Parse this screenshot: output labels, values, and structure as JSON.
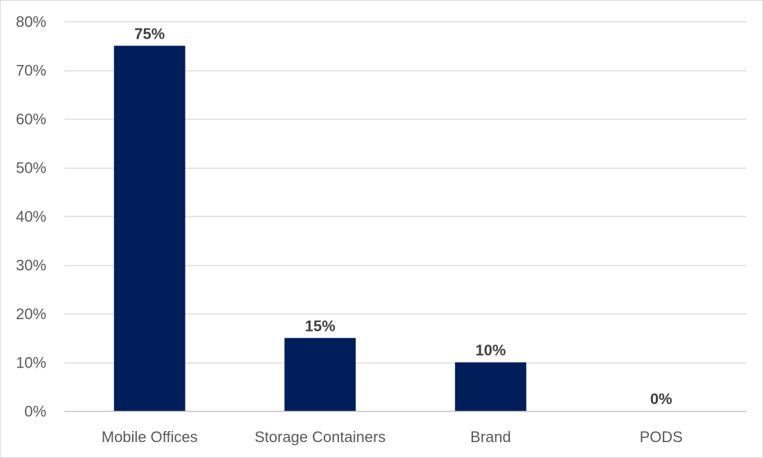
{
  "chart_data": {
    "type": "bar",
    "title": "",
    "xlabel": "",
    "ylabel": "",
    "categories": [
      "Mobile Offices",
      "Storage Containers",
      "Brand",
      "PODS"
    ],
    "values": [
      75,
      15,
      10,
      0
    ],
    "data_labels": [
      "75%",
      "15%",
      "10%",
      "0%"
    ],
    "ylim": [
      0,
      80
    ],
    "y_ticks": [
      0,
      10,
      20,
      30,
      40,
      50,
      60,
      70,
      80
    ],
    "y_tick_labels": [
      "0%",
      "10%",
      "20%",
      "30%",
      "40%",
      "50%",
      "60%",
      "70%",
      "80%"
    ],
    "grid": true,
    "legend": "none",
    "colors": {
      "bar": "#001e5a",
      "grid": "#d9d9d9",
      "axis": "#bfbfbf"
    }
  }
}
